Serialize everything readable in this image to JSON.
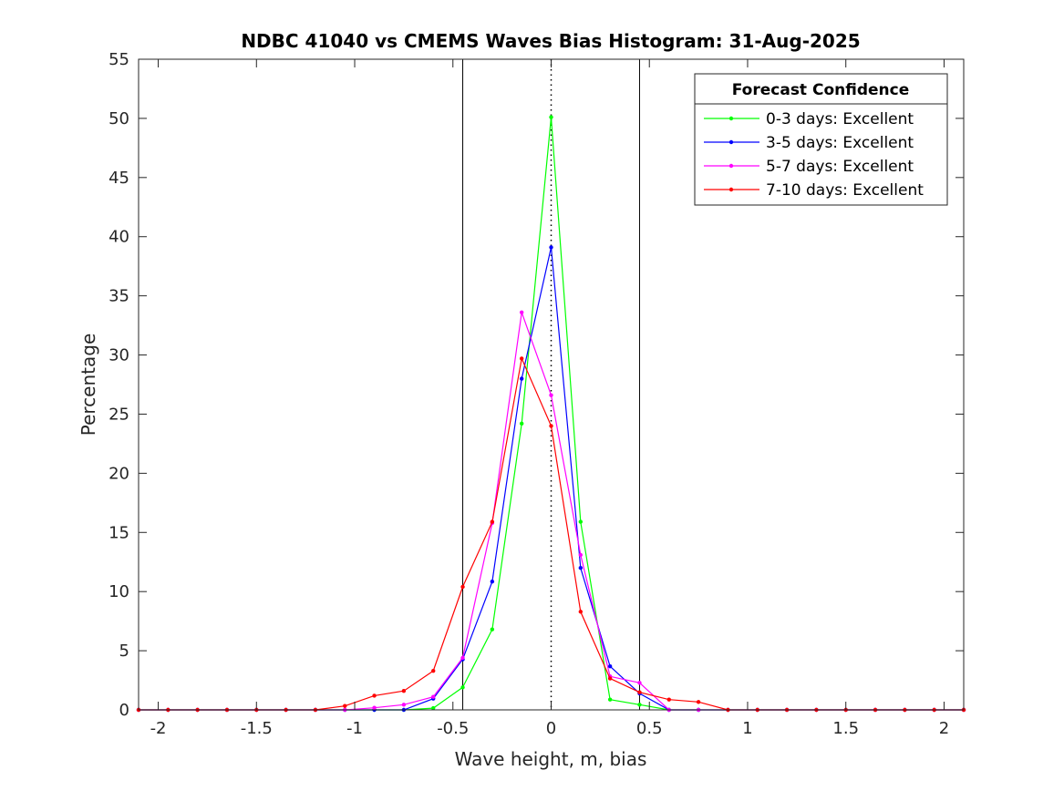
{
  "chart_data": {
    "type": "line",
    "title": "NDBC 41040 vs CMEMS Waves Bias Histogram: 31-Aug-2025",
    "xlabel": "Wave height, m, bias",
    "ylabel": "Percentage",
    "xlim": [
      -2.1,
      2.1
    ],
    "ylim": [
      0,
      55
    ],
    "xticks": [
      -2,
      -1.5,
      -1,
      -0.5,
      0,
      0.5,
      1,
      1.5,
      2
    ],
    "xtick_labels": [
      "-2",
      "-1.5",
      "-1",
      "-0.5",
      "0",
      "0.5",
      "1",
      "1.5",
      "2"
    ],
    "yticks": [
      0,
      5,
      10,
      15,
      20,
      25,
      30,
      35,
      40,
      45,
      50,
      55
    ],
    "ytick_labels": [
      "0",
      "5",
      "10",
      "15",
      "20",
      "25",
      "30",
      "35",
      "40",
      "45",
      "50",
      "55"
    ],
    "grid": false,
    "reference_lines": {
      "solid_x": [
        -0.45,
        0.45
      ],
      "dotted_x": [
        0
      ]
    },
    "legend": {
      "title": "Forecast Confidence",
      "placement": "top-right"
    },
    "x": [
      -2.1,
      -1.95,
      -1.8,
      -1.65,
      -1.5,
      -1.35,
      -1.2,
      -1.05,
      -0.9,
      -0.75,
      -0.6,
      -0.45,
      -0.3,
      -0.15,
      0,
      0.15,
      0.3,
      0.45,
      0.6,
      0.75,
      0.9,
      1.05,
      1.2,
      1.35,
      1.5,
      1.65,
      1.8,
      1.95,
      2.1
    ],
    "series": [
      {
        "name": "0-3 days: Excellent",
        "color": "#00ff00",
        "values": [
          0,
          0,
          0,
          0,
          0,
          0,
          0,
          0,
          0,
          0,
          0.15,
          1.9,
          6.8,
          24.2,
          50.1,
          15.9,
          0.87,
          0.44,
          0,
          0,
          0,
          0,
          0,
          0,
          0,
          0,
          0,
          0,
          0
        ]
      },
      {
        "name": "3-5 days: Excellent",
        "color": "#0000ff",
        "values": [
          0,
          0,
          0,
          0,
          0,
          0,
          0,
          0,
          0,
          0,
          0.95,
          4.27,
          10.85,
          28.0,
          39.1,
          12.0,
          3.68,
          1.39,
          0,
          0,
          0,
          0,
          0,
          0,
          0,
          0,
          0,
          0,
          0
        ]
      },
      {
        "name": "5-7 days: Excellent",
        "color": "#ff00ff",
        "values": [
          0,
          0,
          0,
          0,
          0,
          0,
          0,
          0,
          0.18,
          0.44,
          1.1,
          4.4,
          15.8,
          33.6,
          26.6,
          13.1,
          2.83,
          2.29,
          0,
          0,
          0,
          0,
          0,
          0,
          0,
          0,
          0,
          0,
          0
        ]
      },
      {
        "name": "7-10 days: Excellent",
        "color": "#ff0000",
        "values": [
          0,
          0,
          0,
          0,
          0,
          0,
          0,
          0.33,
          1.2,
          1.6,
          3.3,
          10.4,
          15.9,
          29.7,
          24.0,
          8.3,
          2.65,
          1.49,
          0.87,
          0.67,
          0,
          0,
          0,
          0,
          0,
          0,
          0,
          0,
          0
        ]
      }
    ]
  }
}
